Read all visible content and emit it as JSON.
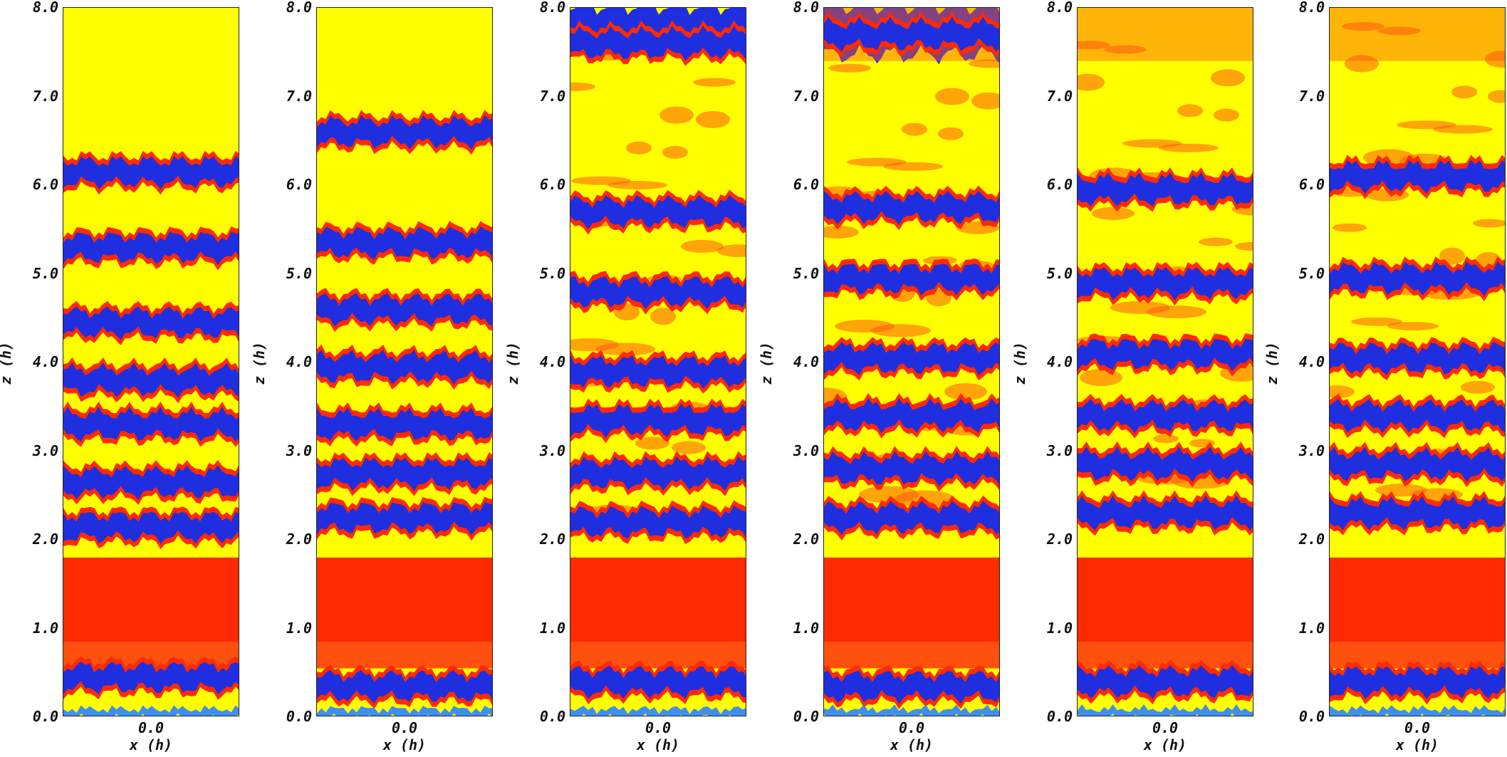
{
  "axes": {
    "xlabel": "x (h)",
    "zlabel": "z (h)",
    "xtick": "0.0",
    "zticks": [
      "8.0",
      "7.0",
      "6.0",
      "5.0",
      "4.0",
      "3.0",
      "2.0",
      "1.0",
      "0.0"
    ]
  },
  "colors": {
    "yellow": "#ffff00",
    "orange": "#ff5a10",
    "red": "#ff2a00",
    "blue": "#1f2fe0",
    "lightblue": "#3f8ff0"
  },
  "panels": [
    {
      "blue_bands": [
        6.15,
        5.3,
        4.45,
        3.8,
        3.3,
        2.65,
        2.15,
        0.45
      ],
      "top_blue": false
    },
    {
      "blue_bands": [
        6.6,
        5.35,
        4.6,
        3.95,
        3.3,
        2.75,
        2.25,
        0.35
      ],
      "top_blue": false
    },
    {
      "blue_bands": [
        7.6,
        5.7,
        4.8,
        3.9,
        3.35,
        2.75,
        2.2,
        0.4
      ],
      "top_blue": true
    },
    {
      "blue_bands": [
        7.7,
        5.75,
        4.95,
        4.05,
        3.4,
        2.8,
        2.25,
        0.35
      ],
      "top_blue": true
    },
    {
      "blue_bands": [
        5.95,
        4.9,
        4.1,
        3.4,
        2.85,
        2.3,
        0.4
      ],
      "top_blue": false
    },
    {
      "blue_bands": [
        6.1,
        4.95,
        4.05,
        3.4,
        2.85,
        2.3,
        0.4
      ],
      "top_blue": false
    }
  ]
}
